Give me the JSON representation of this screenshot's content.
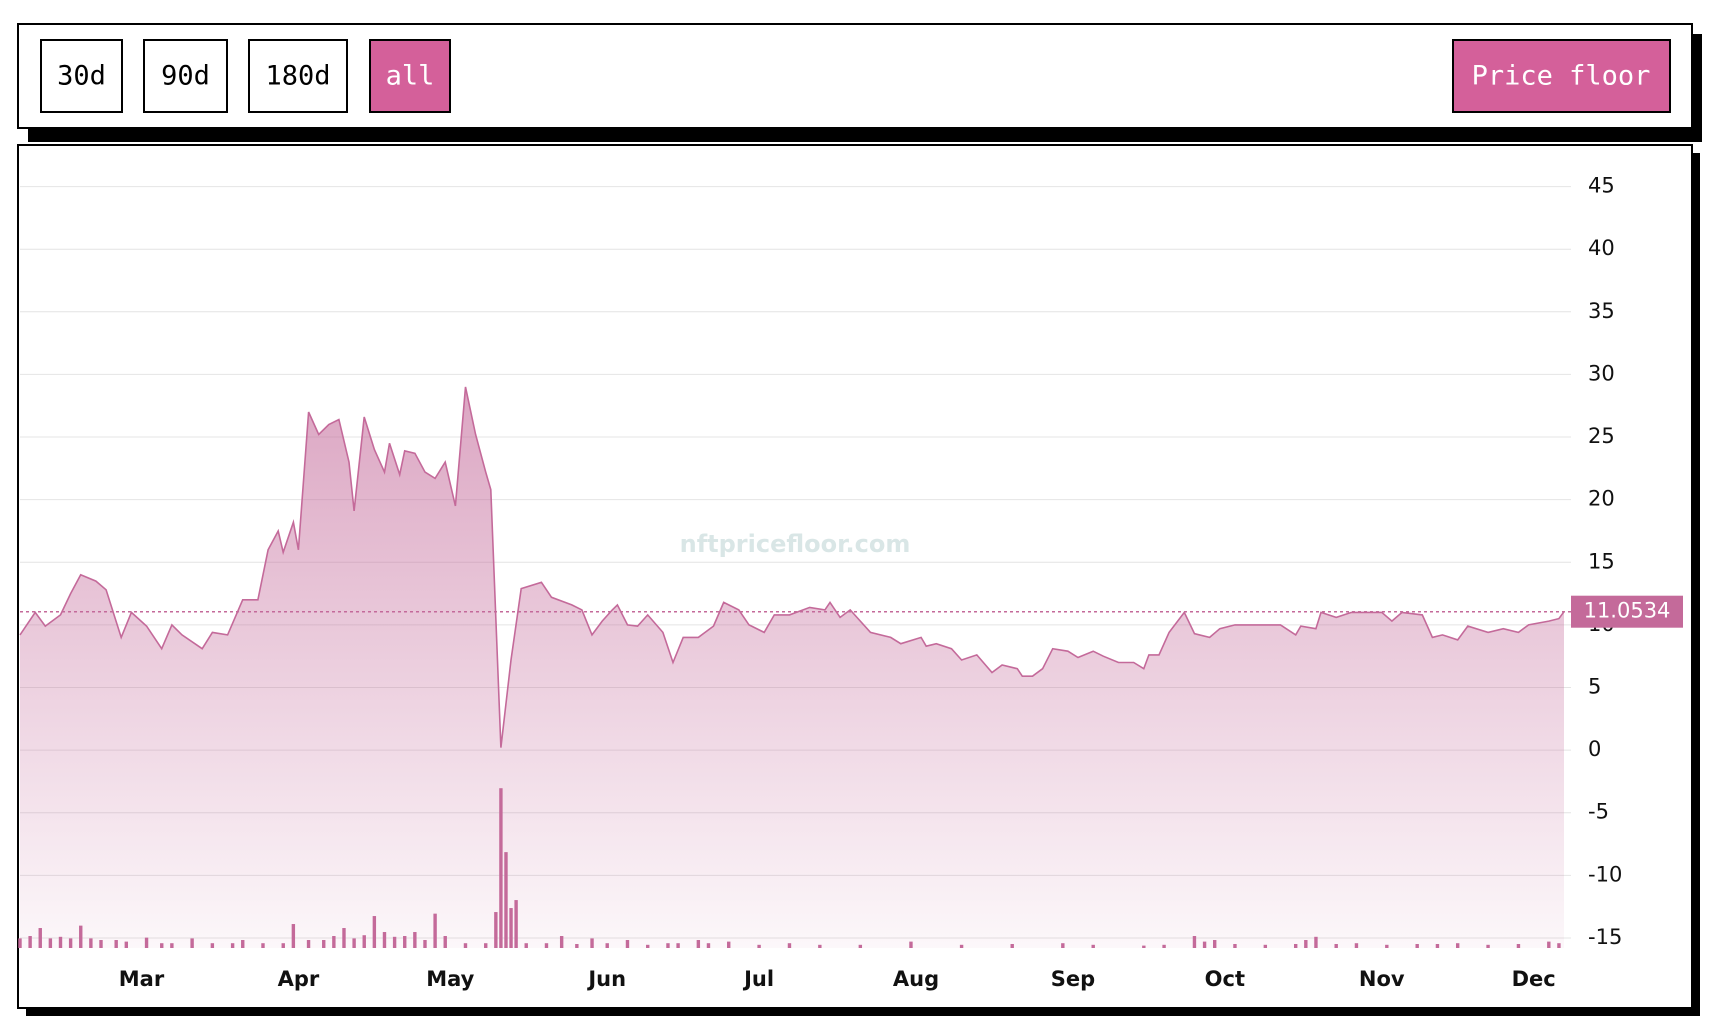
{
  "controls": {
    "ranges": [
      "30d",
      "90d",
      "180d",
      "all"
    ],
    "active_range_index": 3,
    "metric": "Price floor"
  },
  "chart_data": {
    "type": "area",
    "watermark": "nftpricefloor.com",
    "x": [
      0,
      3,
      5,
      8,
      10,
      12,
      15,
      17,
      20,
      22,
      25,
      28,
      30,
      32,
      36,
      38,
      41,
      44,
      47,
      49,
      51,
      52,
      54,
      55,
      57,
      59,
      61,
      63,
      65,
      66,
      68,
      70,
      72,
      73,
      75,
      76,
      78,
      80,
      82,
      84,
      86,
      88,
      90,
      92,
      93,
      95,
      97,
      99,
      103,
      105,
      109,
      111,
      113,
      115,
      117,
      118,
      120,
      122,
      124,
      127,
      129,
      131,
      134,
      137,
      139,
      142,
      144,
      147,
      149,
      152,
      156,
      159,
      160,
      162,
      164,
      168,
      172,
      174,
      178,
      179,
      181,
      184,
      186,
      189,
      192,
      194,
      197,
      198,
      200,
      202,
      204,
      207,
      209,
      212,
      214,
      217,
      220,
      222,
      223,
      225,
      227,
      230,
      232,
      235,
      237,
      240,
      243,
      246,
      249,
      252,
      253,
      256,
      257,
      260,
      263,
      267,
      269,
      271,
      273,
      277,
      279,
      281,
      284,
      286,
      290,
      293,
      296,
      298,
      302,
      304,
      305
    ],
    "series": [
      {
        "name": "Price floor",
        "color": "#c46a9a",
        "values": [
          9.2,
          11,
          9.9,
          10.8,
          12.5,
          14,
          13.5,
          12.8,
          9,
          11,
          9.9,
          8.1,
          10,
          9.2,
          8.1,
          9.4,
          9.2,
          12,
          12,
          16,
          17.5,
          15.8,
          18.2,
          16,
          27,
          25.2,
          26,
          26.4,
          23,
          19.1,
          26.6,
          24,
          22.2,
          24.5,
          22,
          23.9,
          23.7,
          22.2,
          21.7,
          23,
          19.5,
          29,
          25.2,
          22.2,
          20.8,
          0.2,
          7.2,
          12.9,
          13.4,
          12.2,
          11.6,
          11.2,
          9.2,
          10.3,
          11.2,
          11.6,
          10,
          9.9,
          10.8,
          9.4,
          7,
          9,
          9,
          9.9,
          11.8,
          11.2,
          10,
          9.4,
          10.8,
          10.8,
          11.4,
          11.2,
          11.8,
          10.6,
          11.2,
          9.4,
          9,
          8.5,
          9,
          8.3,
          8.5,
          8.1,
          7.2,
          7.6,
          6.2,
          6.8,
          6.5,
          5.9,
          5.9,
          6.5,
          8.1,
          7.9,
          7.4,
          7.9,
          7.5,
          7,
          7,
          6.5,
          7.6,
          7.6,
          9.4,
          11,
          9.3,
          9,
          9.7,
          10,
          10,
          10,
          10,
          9.2,
          9.9,
          9.7,
          11,
          10.6,
          11,
          11,
          11,
          10.3,
          11,
          10.8,
          9,
          9.2,
          8.8,
          9.9,
          9.4,
          9.7,
          9.4,
          10,
          10.3,
          10.5,
          11.0534
        ]
      },
      {
        "name": "Volume",
        "color": "#c46a9a",
        "axis": "y2",
        "type": "bar",
        "x": [
          0,
          2,
          4,
          6,
          8,
          10,
          12,
          14,
          16,
          19,
          21,
          25,
          28,
          30,
          34,
          38,
          42,
          44,
          48,
          52,
          54,
          57,
          60,
          62,
          64,
          66,
          68,
          70,
          72,
          74,
          76,
          78,
          80,
          82,
          84,
          88,
          92,
          94,
          95,
          96,
          97,
          98,
          100,
          104,
          107,
          110,
          113,
          116,
          120,
          124,
          128,
          130,
          134,
          136,
          140,
          146,
          152,
          158,
          166,
          176,
          186,
          196,
          206,
          212,
          222,
          226,
          232,
          234,
          236,
          240,
          246,
          252,
          254,
          256,
          260,
          264,
          270,
          276,
          280,
          284,
          290,
          296,
          302,
          304
        ],
        "values": [
          1.2,
          1.5,
          2.5,
          1.2,
          1.4,
          1.2,
          2.8,
          1.2,
          1,
          1,
          0.8,
          1.3,
          0.6,
          0.6,
          1.2,
          0.6,
          0.6,
          1,
          0.6,
          0.6,
          3,
          1,
          1,
          1.5,
          2.5,
          1.2,
          1.6,
          4,
          2,
          1.4,
          1.5,
          2,
          1,
          4.3,
          1.5,
          0.6,
          0.6,
          4.5,
          20,
          12,
          5,
          6,
          0.6,
          0.6,
          1.5,
          0.5,
          1.2,
          0.6,
          1,
          0.4,
          0.6,
          0.6,
          1,
          0.6,
          0.8,
          0.4,
          0.6,
          0.4,
          0.4,
          0.8,
          0.4,
          0.5,
          0.6,
          0.4,
          0.3,
          0.4,
          1.5,
          0.8,
          1,
          0.5,
          0.4,
          0.5,
          1,
          1.4,
          0.5,
          0.6,
          0.4,
          0.5,
          0.5,
          0.6,
          0.4,
          0.5,
          0.8,
          0.6
        ]
      }
    ],
    "current_value": 11.0534,
    "xlim": [
      0,
      305
    ],
    "xticks": [
      {
        "value": 24,
        "label": "Mar"
      },
      {
        "value": 55,
        "label": "Apr"
      },
      {
        "value": 85,
        "label": "May"
      },
      {
        "value": 116,
        "label": "Jun"
      },
      {
        "value": 146,
        "label": "Jul"
      },
      {
        "value": 177,
        "label": "Aug"
      },
      {
        "value": 208,
        "label": "Sep"
      },
      {
        "value": 238,
        "label": "Oct"
      },
      {
        "value": 269,
        "label": "Nov"
      },
      {
        "value": 299,
        "label": "Dec"
      }
    ],
    "ylim": [
      -15.8,
      48
    ],
    "yticks": [
      -15,
      -10,
      -5,
      0,
      5,
      10,
      15,
      20,
      25,
      30,
      35,
      40,
      45
    ],
    "y2lim": [
      0,
      100
    ],
    "grid": true
  }
}
